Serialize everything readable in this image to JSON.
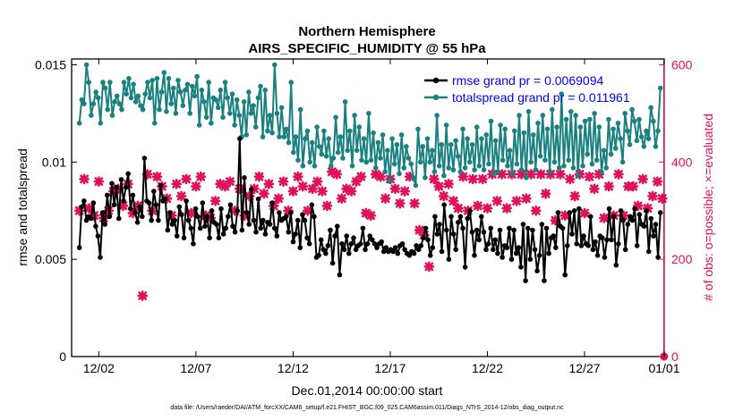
{
  "chart_data": {
    "type": "line",
    "title": "Northern Hemisphere",
    "subtitle": "AIRS_SPECIFIC_HUMIDITY @ 55 hPa",
    "xlabel": "Dec.01,2014 00:00:00 start",
    "ylabel": "rmse and totalspread",
    "ylabel_right": "# of obs: o=possible; ×=evaluated",
    "footnote": "data file: /Users/raeder/DAI/ATM_forcXX/CAM6_setup/f.e21.FHIST_BGC.f09_025.CAM6assim.011/Diags_NTrS_2014-12/obs_diag_output.nc",
    "xlim": [
      0.6,
      31.1
    ],
    "ylim": [
      0,
      0.0153
    ],
    "ylim_right": [
      0,
      612
    ],
    "x_ticks": [
      {
        "value": 2,
        "label": "12/02"
      },
      {
        "value": 7,
        "label": "12/07"
      },
      {
        "value": 12,
        "label": "12/12"
      },
      {
        "value": 17,
        "label": "12/17"
      },
      {
        "value": 22,
        "label": "12/22"
      },
      {
        "value": 27,
        "label": "12/27"
      },
      {
        "value": 32,
        "label": "01/01"
      }
    ],
    "y_ticks": [
      {
        "value": 0,
        "label": "0"
      },
      {
        "value": 0.005,
        "label": "0.005"
      },
      {
        "value": 0.01,
        "label": "0.01"
      },
      {
        "value": 0.015,
        "label": "0.015"
      }
    ],
    "y_ticks_right": [
      {
        "value": 0,
        "label": "0"
      },
      {
        "value": 200,
        "label": "200"
      },
      {
        "value": 400,
        "label": "400"
      },
      {
        "value": 600,
        "label": "600"
      }
    ],
    "series": [
      {
        "name": "rmse grand pr = 0.0069094",
        "color": "#000000",
        "axis": "left",
        "values": [
          0.0056,
          0.0077,
          0.008,
          0.007,
          0.0072,
          0.0071,
          0.0079,
          0.0067,
          0.0062,
          0.0051,
          0.0074,
          0.0068,
          0.0083,
          0.0072,
          0.0089,
          0.0078,
          0.0087,
          0.0071,
          0.0091,
          0.008,
          0.0087,
          0.0094,
          0.0076,
          0.0083,
          0.0074,
          0.0069,
          0.0077,
          0.0072,
          0.0102,
          0.008,
          0.0079,
          0.007,
          0.0085,
          0.0078,
          0.007,
          0.0088,
          0.008,
          0.0081,
          0.0065,
          0.0074,
          0.0068,
          0.007,
          0.0062,
          0.0077,
          0.0073,
          0.0061,
          0.008,
          0.007,
          0.0066,
          0.0058,
          0.0076,
          0.0072,
          0.0066,
          0.0079,
          0.0067,
          0.0072,
          0.0061,
          0.0075,
          0.0069,
          0.0068,
          0.0061,
          0.0076,
          0.0063,
          0.0066,
          0.0072,
          0.0078,
          0.0067,
          0.0064,
          0.0075,
          0.0112,
          0.0065,
          0.0092,
          0.0074,
          0.0068,
          0.0086,
          0.007,
          0.0064,
          0.0081,
          0.0066,
          0.007,
          0.0063,
          0.0069,
          0.0068,
          0.0079,
          0.0066,
          0.0062,
          0.0074,
          0.007,
          0.0071,
          0.0072,
          0.0064,
          0.0074,
          0.0059,
          0.0063,
          0.007,
          0.0056,
          0.0073,
          0.007,
          0.0061,
          0.0058,
          0.0078,
          0.0072,
          0.0051,
          0.0052,
          0.006,
          0.0055,
          0.0053,
          0.0057,
          0.0065,
          0.0048,
          0.0062,
          0.0067,
          0.0042,
          0.0058,
          0.0055,
          0.0062,
          0.0053,
          0.0058,
          0.0061,
          0.0055,
          0.0057,
          0.0058,
          0.0066,
          0.0055,
          0.0058,
          0.0062,
          0.006,
          0.0058,
          0.0056,
          0.0058,
          0.0059,
          0.0054,
          0.0056,
          0.0054,
          0.0055,
          0.0054,
          0.0056,
          0.0053,
          0.0057,
          0.0058,
          0.0055,
          0.0053,
          0.0052,
          0.0054,
          0.0053,
          0.0057,
          0.0055,
          0.0057,
          0.0061,
          0.0066,
          0.006,
          0.0052,
          0.0056,
          0.0072,
          0.0063,
          0.0068,
          0.0054,
          0.0078,
          0.0065,
          0.005,
          0.0072,
          0.0063,
          0.0055,
          0.0069,
          0.0072,
          0.0066,
          0.0046,
          0.0071,
          0.0075,
          0.0064,
          0.0052,
          0.0065,
          0.006,
          0.0072,
          0.0064,
          0.0055,
          0.0058,
          0.0066,
          0.0055,
          0.006,
          0.0053,
          0.0065,
          0.0051,
          0.0057,
          0.0056,
          0.0066,
          0.005,
          0.0065,
          0.0053,
          0.0056,
          0.0046,
          0.0068,
          0.0039,
          0.0066,
          0.005,
          0.0065,
          0.0055,
          0.0044,
          0.0052,
          0.0068,
          0.0039,
          0.0066,
          0.0053,
          0.0061,
          0.0062,
          0.0056,
          0.0074,
          0.0067,
          0.0066,
          0.0042,
          0.0057,
          0.0074,
          0.0063,
          0.0075,
          0.0058,
          0.0076,
          0.0057,
          0.0062,
          0.0058,
          0.0057,
          0.0072,
          0.0055,
          0.0059,
          0.0052,
          0.0062,
          0.0061,
          0.0051,
          0.006,
          0.0076,
          0.006,
          0.0072,
          0.0047,
          0.0058,
          0.0075,
          0.007,
          0.0055,
          0.0068,
          0.0072,
          0.007,
          0.0076,
          0.0057,
          0.0073,
          0.0068,
          0.0067,
          0.0075,
          0.0054,
          0.0071,
          0.0062,
          0.0068,
          0.0051,
          0.0074
        ]
      },
      {
        "name": "totalspread grand pr = 0.011961",
        "color": "#1a8080",
        "axis": "left",
        "values": [
          0.012,
          0.0132,
          0.013,
          0.015,
          0.0141,
          0.0124,
          0.013,
          0.0136,
          0.0133,
          0.012,
          0.0141,
          0.0138,
          0.0127,
          0.0141,
          0.0124,
          0.0131,
          0.0134,
          0.013,
          0.0127,
          0.0141,
          0.0135,
          0.0143,
          0.0133,
          0.014,
          0.0131,
          0.0134,
          0.0129,
          0.0127,
          0.0135,
          0.0141,
          0.0133,
          0.0142,
          0.012,
          0.0143,
          0.0127,
          0.0136,
          0.0146,
          0.0126,
          0.0143,
          0.013,
          0.0138,
          0.0125,
          0.0142,
          0.0136,
          0.0129,
          0.0137,
          0.014,
          0.0125,
          0.0139,
          0.0134,
          0.0144,
          0.0119,
          0.0137,
          0.0131,
          0.0123,
          0.0141,
          0.012,
          0.0133,
          0.0132,
          0.0128,
          0.0137,
          0.0123,
          0.0141,
          0.0133,
          0.0125,
          0.0135,
          0.0119,
          0.0132,
          0.0124,
          0.0113,
          0.0131,
          0.0114,
          0.0136,
          0.0125,
          0.0129,
          0.0118,
          0.0133,
          0.0139,
          0.0113,
          0.0137,
          0.0116,
          0.0124,
          0.0115,
          0.015,
          0.0125,
          0.0113,
          0.0128,
          0.0113,
          0.0117,
          0.011,
          0.0141,
          0.0105,
          0.0113,
          0.0101,
          0.0127,
          0.0098,
          0.0112,
          0.0116,
          0.01,
          0.011,
          0.0098,
          0.0118,
          0.0108,
          0.0104,
          0.0116,
          0.0103,
          0.0112,
          0.0098,
          0.0102,
          0.0123,
          0.0105,
          0.0113,
          0.0102,
          0.0131,
          0.0106,
          0.0116,
          0.0098,
          0.0124,
          0.0106,
          0.0118,
          0.0101,
          0.0112,
          0.01,
          0.0125,
          0.0101,
          0.0115,
          0.0097,
          0.011,
          0.0102,
          0.0114,
          0.0095,
          0.0106,
          0.009,
          0.0112,
          0.0099,
          0.0109,
          0.0094,
          0.0114,
          0.0097,
          0.0108,
          0.0102,
          0.0099,
          0.0092,
          0.0088,
          0.0117,
          0.01,
          0.0108,
          0.0092,
          0.0112,
          0.01,
          0.0106,
          0.0095,
          0.0124,
          0.0098,
          0.0109,
          0.0093,
          0.0119,
          0.0097,
          0.0109,
          0.0096,
          0.0111,
          0.0103,
          0.0095,
          0.0117,
          0.0097,
          0.0112,
          0.01,
          0.0109,
          0.0096,
          0.0118,
          0.0098,
          0.0112,
          0.0096,
          0.0114,
          0.0099,
          0.0121,
          0.0094,
          0.0111,
          0.0095,
          0.0119,
          0.0101,
          0.0117,
          0.0098,
          0.0106,
          0.0094,
          0.0116,
          0.0099,
          0.0124,
          0.0096,
          0.0115,
          0.0092,
          0.0126,
          0.01,
          0.0114,
          0.0096,
          0.012,
          0.0103,
          0.0124,
          0.0101,
          0.0117,
          0.0095,
          0.0127,
          0.01,
          0.0118,
          0.0097,
          0.0135,
          0.0098,
          0.0122,
          0.0101,
          0.0126,
          0.0097,
          0.0124,
          0.0093,
          0.0118,
          0.0098,
          0.0121,
          0.0104,
          0.0122,
          0.0099,
          0.0125,
          0.0101,
          0.0118,
          0.0095,
          0.0106,
          0.0097,
          0.0122,
          0.0104,
          0.0117,
          0.0107,
          0.012,
          0.0112,
          0.01,
          0.0125,
          0.0116,
          0.0109,
          0.0127,
          0.0121,
          0.0111,
          0.0122,
          0.0113,
          0.0108,
          0.0116,
          0.0112,
          0.0128,
          0.0121,
          0.0108,
          0.0116,
          0.0138
        ]
      }
    ],
    "markers": {
      "name": "# of obs",
      "color": "#e0105a",
      "axis": "right",
      "x": [
        1,
        1.25,
        1.5,
        1.75,
        2,
        2.25,
        2.5,
        2.75,
        3,
        3.25,
        3.5,
        3.75,
        4,
        4.25,
        4.5,
        4.75,
        5,
        5.25,
        5.5,
        5.75,
        6,
        6.25,
        6.5,
        6.75,
        7,
        7.25,
        7.5,
        7.75,
        8,
        8.25,
        8.5,
        8.75,
        9,
        9.25,
        9.5,
        9.75,
        10,
        10.25,
        10.5,
        10.75,
        11,
        11.25,
        11.5,
        11.75,
        12,
        12.25,
        12.5,
        12.75,
        13,
        13.25,
        13.5,
        13.75,
        14,
        14.25,
        14.5,
        14.75,
        15,
        15.25,
        15.5,
        15.75,
        16,
        16.25,
        16.5,
        16.75,
        17,
        17.25,
        17.5,
        17.75,
        18,
        18.25,
        18.5,
        18.75,
        19,
        19.25,
        19.5,
        19.75,
        20,
        20.25,
        20.5,
        20.75,
        21,
        21.25,
        21.5,
        21.75,
        22,
        22.25,
        22.5,
        22.75,
        23,
        23.25,
        23.5,
        23.75,
        24,
        24.25,
        24.5,
        24.75,
        25,
        25.25,
        25.5,
        25.75,
        26,
        26.25,
        26.5,
        26.75,
        27,
        27.25,
        27.5,
        27.75,
        28,
        28.25,
        28.5,
        28.75,
        29,
        29.25,
        29.5,
        29.75,
        30,
        30.25,
        30.5,
        30.75,
        31
      ],
      "values": [
        300,
        365,
        305,
        290,
        360,
        285,
        300,
        340,
        345,
        310,
        355,
        295,
        310,
        125,
        375,
        300,
        370,
        350,
        325,
        290,
        355,
        330,
        365,
        295,
        350,
        370,
        290,
        285,
        320,
        355,
        350,
        360,
        300,
        345,
        290,
        330,
        345,
        370,
        335,
        355,
        310,
        325,
        360,
        300,
        340,
        370,
        350,
        300,
        345,
        360,
        340,
        310,
        380,
        375,
        325,
        345,
        340,
        360,
        370,
        295,
        290,
        375,
        370,
        325,
        365,
        345,
        315,
        340,
        370,
        315,
        260,
        250,
        185,
        365,
        350,
        330,
        355,
        320,
        305,
        370,
        300,
        365,
        310,
        365,
        305,
        375,
        320,
        375,
        305,
        375,
        320,
        375,
        325,
        375,
        300,
        375,
        335,
        375,
        280,
        375,
        290,
        365,
        330,
        375,
        295,
        370,
        345,
        375,
        285,
        350,
        290,
        375,
        290,
        350,
        350,
        310,
        365,
        305,
        330,
        360,
        325
      ]
    },
    "zero_marker": {
      "x": 31,
      "value": 0
    },
    "legend_position": "top-right"
  }
}
